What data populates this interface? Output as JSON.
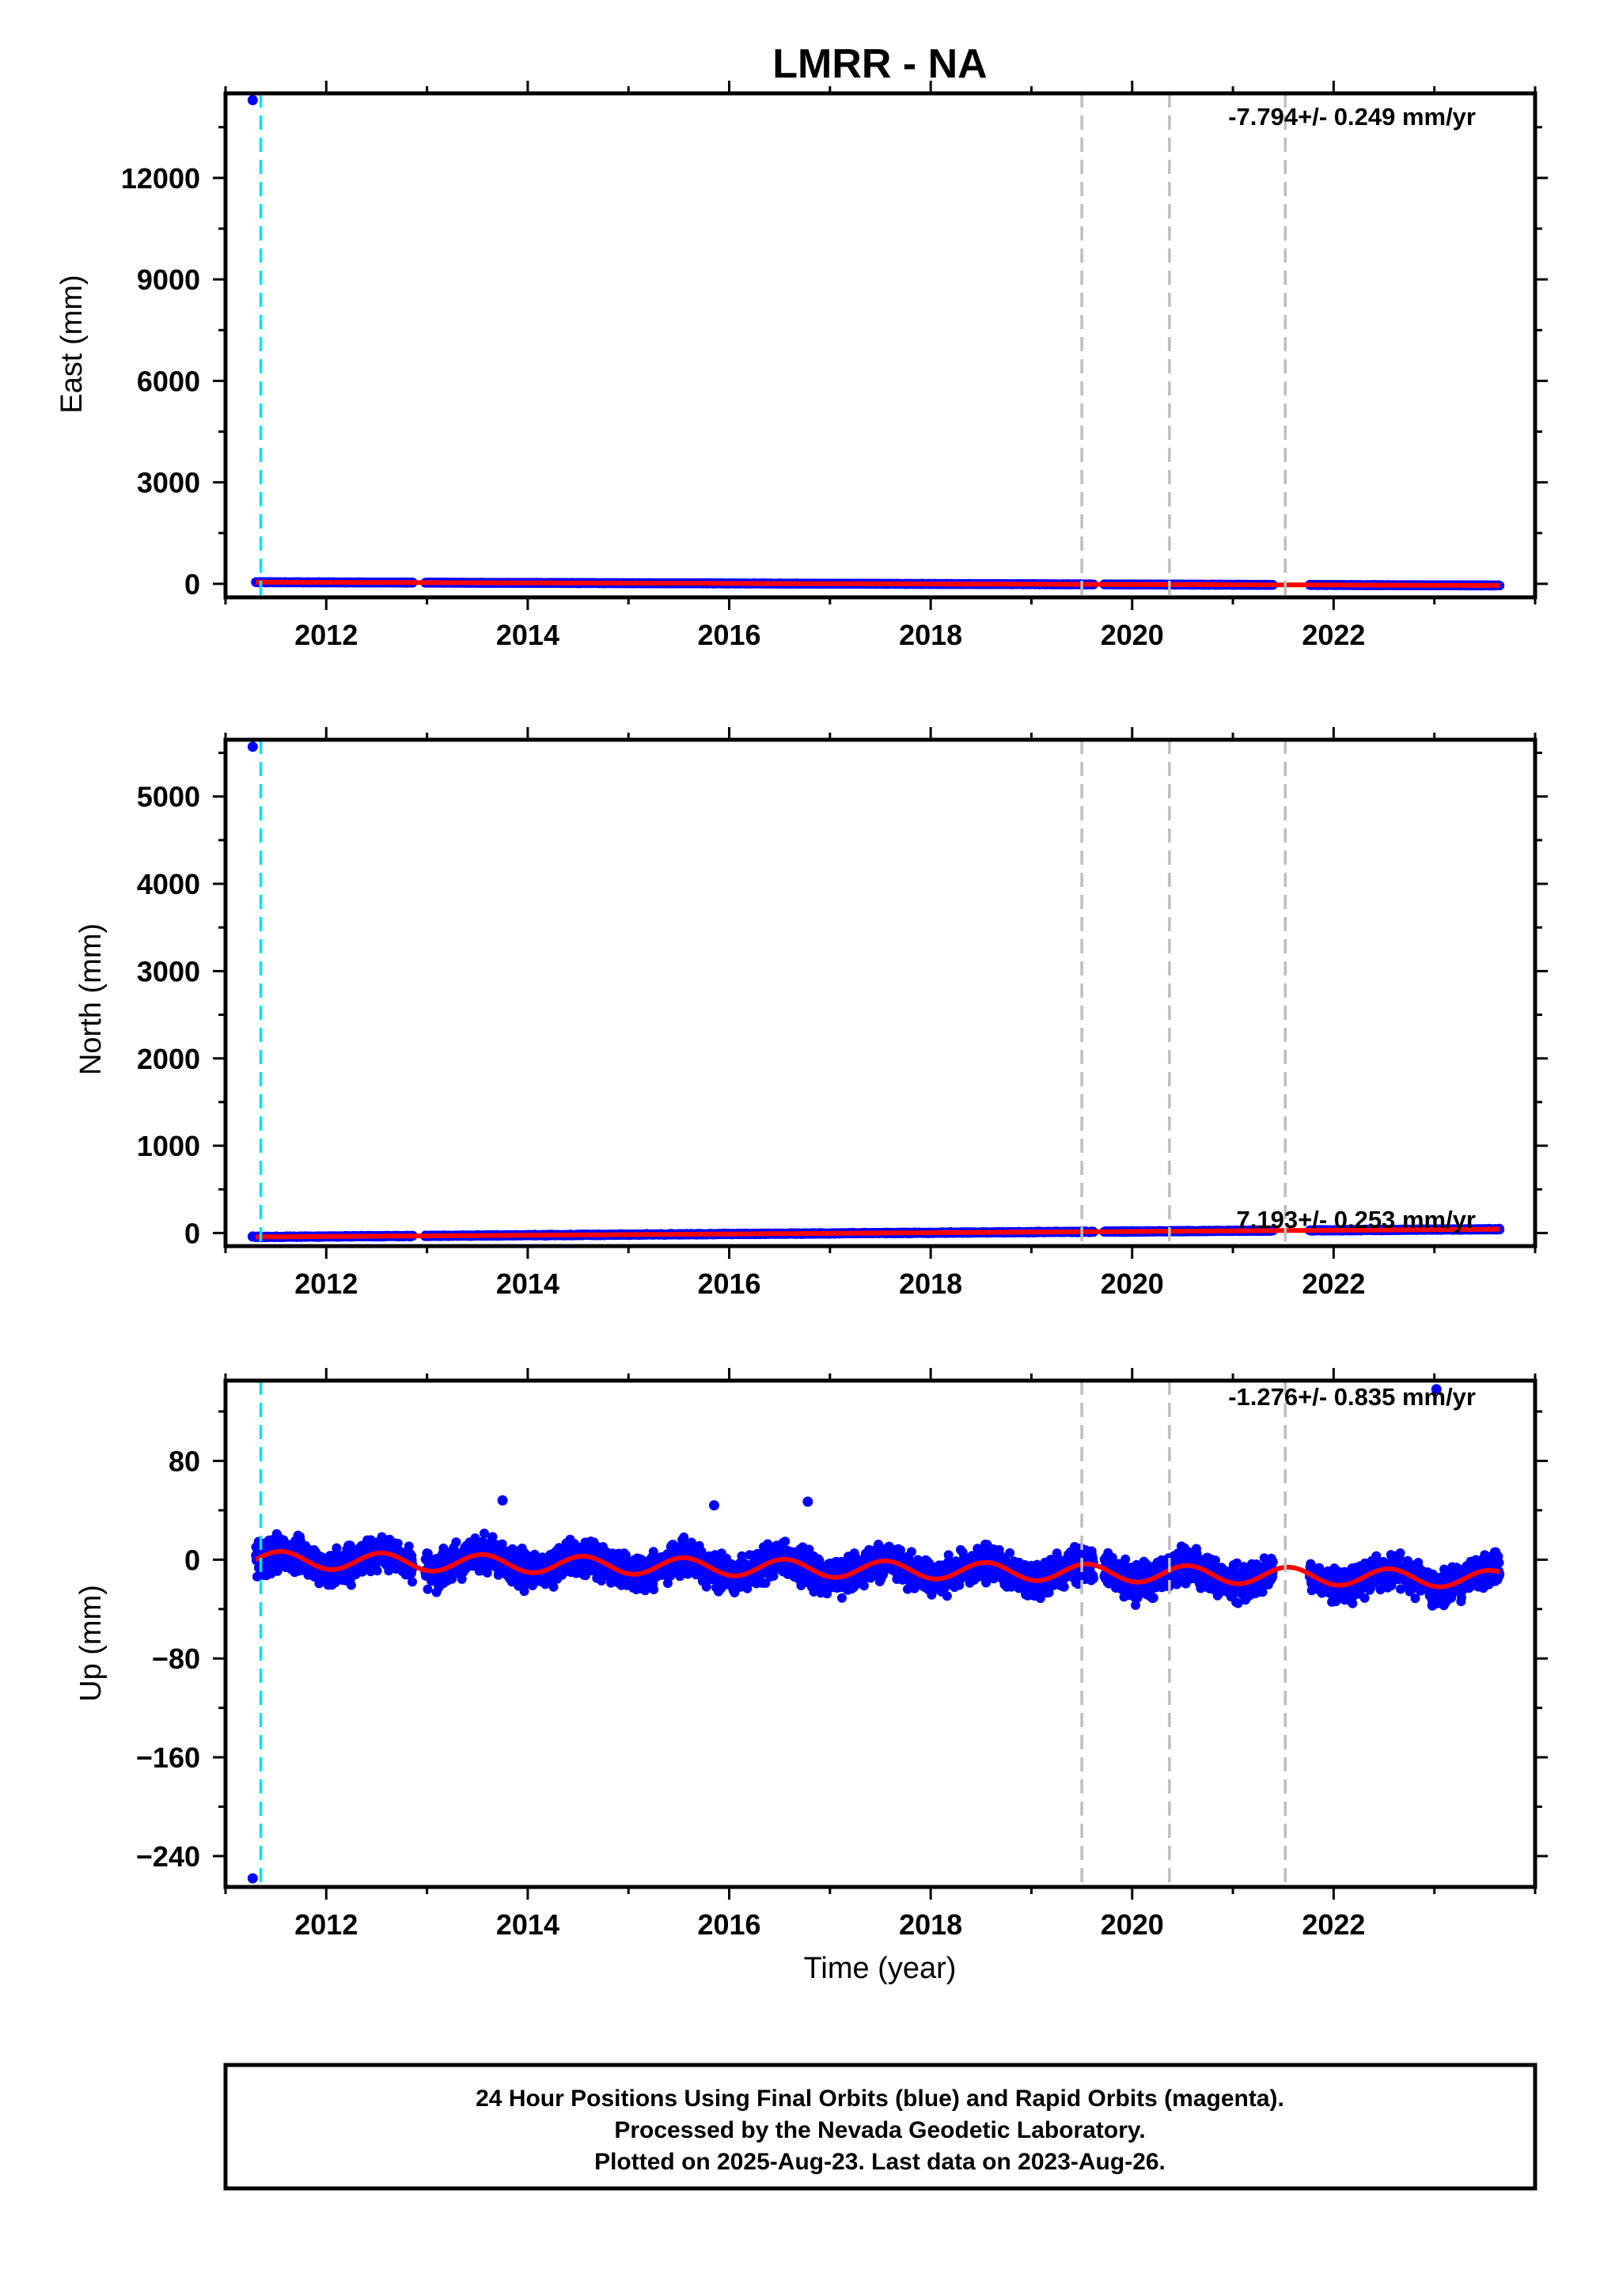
{
  "figure": {
    "title": "LMRR - NA",
    "xlabel": "Time (year)",
    "footer_lines": [
      "24 Hour Positions Using Final Orbits (blue) and Rapid Orbits (magenta).",
      "Processed by the Nevada Geodetic Laboratory.",
      "Plotted on 2025-Aug-23. Last data on 2023-Aug-26."
    ]
  },
  "colors": {
    "final_orbits": "#0000ff",
    "model_fit": "#ff0000",
    "equipment_change": "#00e5ee",
    "other_event": "#bebebe"
  },
  "chart_data": [
    {
      "type": "scatter",
      "ylabel": "East (mm)",
      "rate_label": "-7.794+/- 0.249 mm/yr",
      "xlim": [
        2011.0,
        2024.0
      ],
      "ylim": [
        -400,
        14500
      ],
      "xticks": [
        2012,
        2014,
        2016,
        2018,
        2020,
        2022
      ],
      "yticks": [
        0,
        3000,
        6000,
        9000,
        12000
      ],
      "grid": false,
      "series": [],
      "outliers": [
        [
          2011.27,
          14300
        ]
      ],
      "fit": {
        "start": 2011.3,
        "end": 2023.65,
        "offset": 48,
        "rate": -7.794,
        "annual_amp": 0,
        "phase": 0
      },
      "data_gaps": [
        [
          2012.86,
          2012.98
        ],
        [
          2019.62,
          2019.72
        ],
        [
          2021.4,
          2021.76
        ]
      ],
      "equipment_changes": [
        2011.35
      ],
      "events": [
        2019.5,
        2020.37,
        2021.52
      ]
    },
    {
      "type": "scatter",
      "ylabel": "North (mm)",
      "rate_label": "7.193+/- 0.253 mm/yr",
      "xlim": [
        2011.0,
        2024.0
      ],
      "ylim": [
        -150,
        5650
      ],
      "xticks": [
        2012,
        2014,
        2016,
        2018,
        2020,
        2022
      ],
      "yticks": [
        0,
        1000,
        2000,
        3000,
        4000,
        5000
      ],
      "grid": false,
      "series": [],
      "outliers": [
        [
          2011.27,
          5570
        ],
        [
          2011.27,
          -40
        ]
      ],
      "fit": {
        "start": 2011.3,
        "end": 2023.65,
        "offset": -45,
        "rate": 7.193,
        "annual_amp": 0,
        "phase": 0
      },
      "data_gaps": [
        [
          2012.86,
          2012.98
        ],
        [
          2019.62,
          2019.72
        ],
        [
          2021.4,
          2021.76
        ]
      ],
      "equipment_changes": [
        2011.35
      ],
      "events": [
        2019.5,
        2020.37,
        2021.52
      ]
    },
    {
      "type": "scatter",
      "ylabel": "Up (mm)",
      "rate_label": "-1.276+/- 0.835 mm/yr",
      "xlim": [
        2011.0,
        2024.0
      ],
      "ylim": [
        -265,
        145
      ],
      "xticks": [
        2012,
        2014,
        2016,
        2018,
        2020,
        2022
      ],
      "yticks": [
        -240,
        -160,
        -80,
        0,
        80
      ],
      "grid": false,
      "series": [],
      "outliers": [
        [
          2011.27,
          -258
        ],
        [
          2023.02,
          138
        ],
        [
          2022.98,
          -37
        ],
        [
          2023.05,
          -28
        ],
        [
          2013.75,
          48
        ],
        [
          2016.78,
          47
        ],
        [
          2015.85,
          44
        ]
      ],
      "fit": {
        "start": 2011.3,
        "end": 2023.65,
        "offset": 0,
        "rate": -1.276,
        "annual_amp": 7,
        "phase": 0.3
      },
      "data_gaps": [
        [
          2012.86,
          2012.98
        ],
        [
          2019.62,
          2019.72
        ],
        [
          2021.4,
          2021.76
        ]
      ],
      "equipment_changes": [
        2011.35
      ],
      "events": [
        2019.5,
        2020.37,
        2021.52
      ]
    }
  ]
}
